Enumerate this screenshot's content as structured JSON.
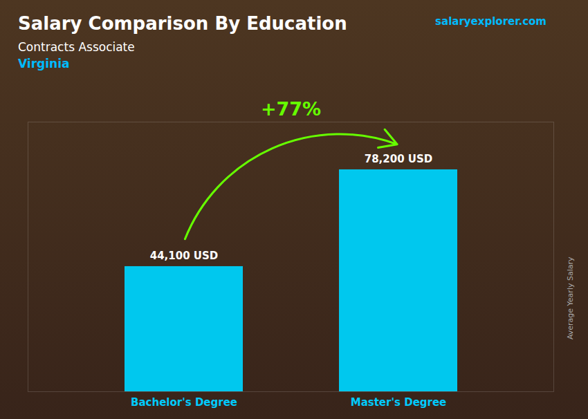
{
  "chart_data": {
    "type": "bar",
    "title": "Salary Comparison By Education",
    "subtitle": "Contracts Associate",
    "categories": [
      "Bachelor's Degree",
      "Master's Degree"
    ],
    "values": [
      44100,
      78200
    ],
    "value_labels": [
      "44,100 USD",
      "78,200 USD"
    ],
    "data_labels": true,
    "color": "#00c8ee",
    "ylabel": "Average Yearly Salary",
    "ylim": [
      0,
      95000
    ],
    "tick_labels": "x",
    "grid": false,
    "annotations": [
      {
        "text": "Virginia"
      },
      {
        "text": "salaryexplorer.com"
      },
      {
        "text": "+77%",
        "color": "#66ff00"
      }
    ]
  }
}
